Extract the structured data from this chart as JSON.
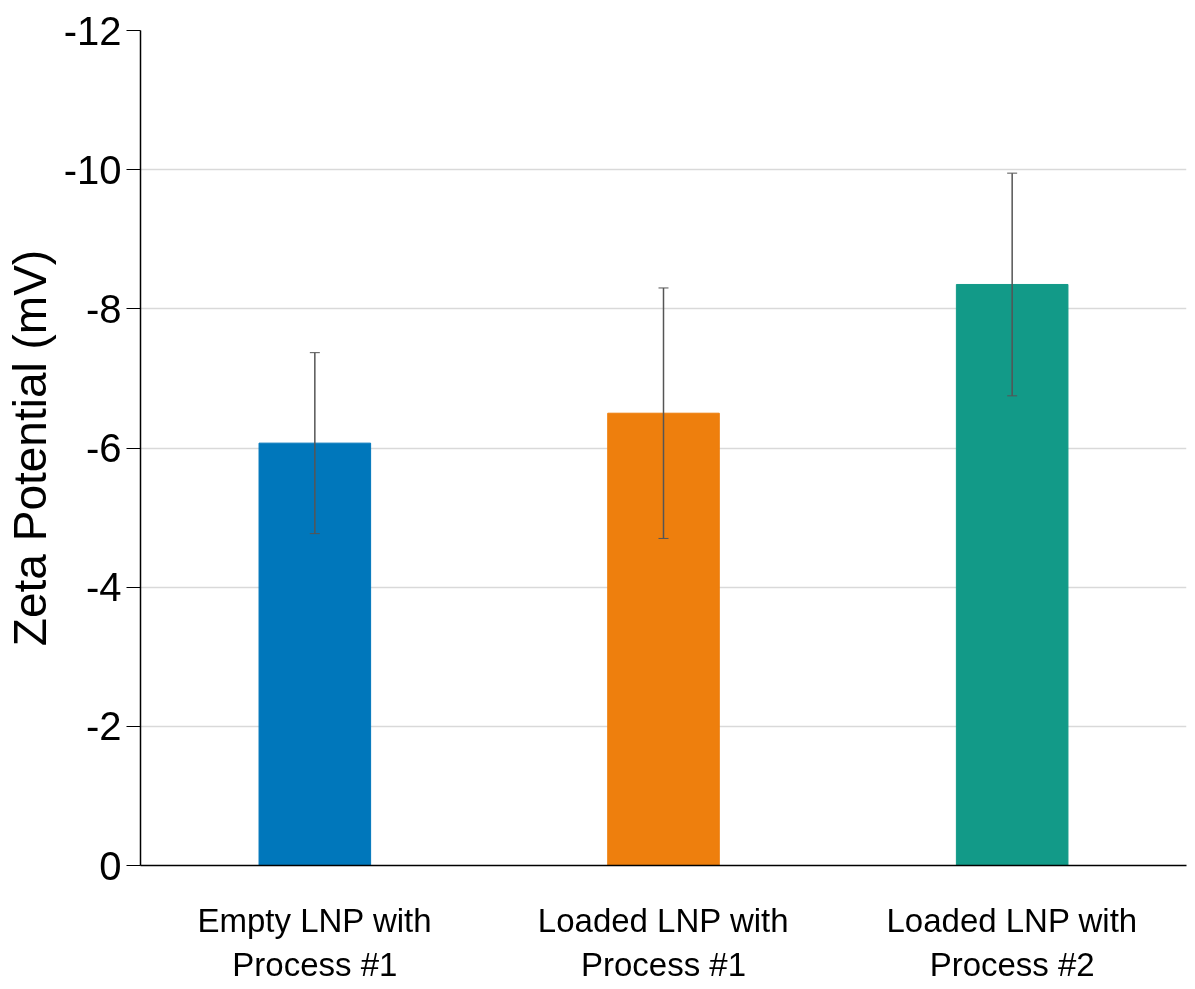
{
  "chart_data": {
    "type": "bar",
    "ylabel": "Zeta Potential (mV)",
    "categories": [
      "Empty LNP with\nProcess #1",
      "Loaded LNP with\nProcess #1",
      "Loaded LNP with\nProcess #2"
    ],
    "values": [
      -6.07,
      -6.5,
      -8.35
    ],
    "errors": [
      1.3,
      1.8,
      1.6
    ],
    "colors": [
      "#0077bb",
      "#ee7f0d",
      "#129a88"
    ],
    "ylim": [
      0,
      -12
    ],
    "yticks": [
      0,
      -2,
      -4,
      -6,
      -8,
      -10,
      -12
    ],
    "grid": "y"
  }
}
